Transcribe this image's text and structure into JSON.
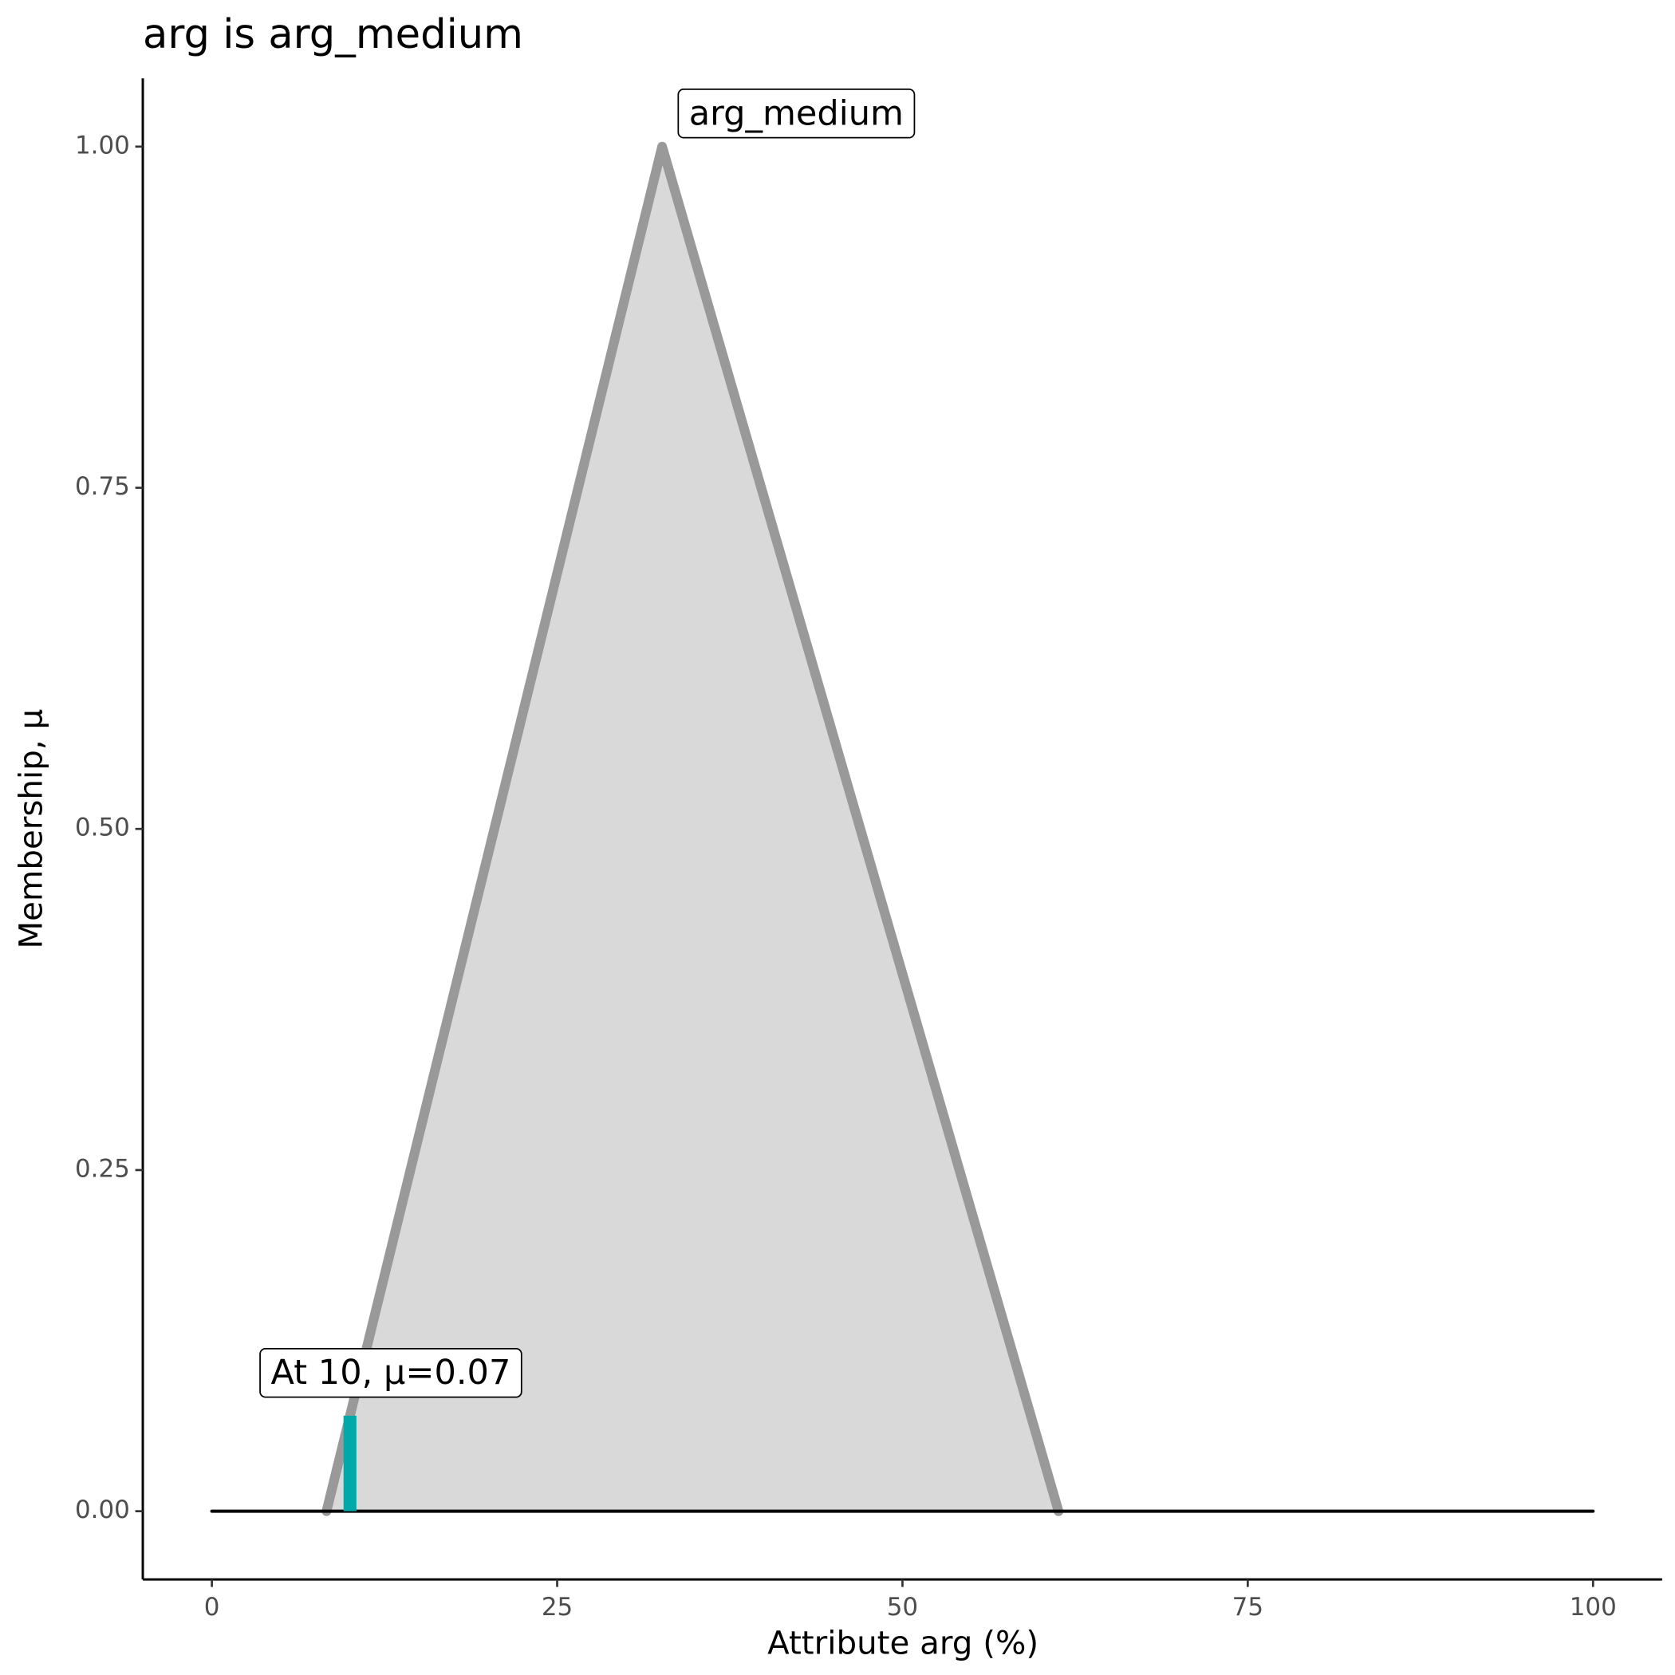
{
  "chart_data": {
    "type": "line",
    "title": "arg is arg_medium",
    "x_label": "Attribute arg (%)",
    "y_label": "Membership, μ",
    "xlim": [
      -5,
      105
    ],
    "ylim": [
      -0.05,
      1.05
    ],
    "xticks": [
      0,
      25,
      50,
      75,
      100
    ],
    "yticks": [
      {
        "value": 0,
        "label": "0.00"
      },
      {
        "value": 0.25,
        "label": "0.25"
      },
      {
        "value": 0.5,
        "label": "0.50"
      },
      {
        "value": 0.75,
        "label": "0.75"
      },
      {
        "value": 1,
        "label": "1.00"
      }
    ],
    "series": [
      {
        "x": [
          8.3,
          32.6,
          61.3
        ],
        "values": [
          0,
          1,
          0
        ],
        "color": "#999999",
        "fill": "#d9d9d9"
      },
      {
        "x": [
          0,
          100
        ],
        "values": [
          0,
          0
        ],
        "color": "#000000"
      }
    ],
    "markers": [
      {
        "x": 10,
        "value": 0.07,
        "color": "#00a9a9"
      }
    ],
    "annotations": [
      "arg_medium",
      "At 10, μ=0.07"
    ]
  }
}
